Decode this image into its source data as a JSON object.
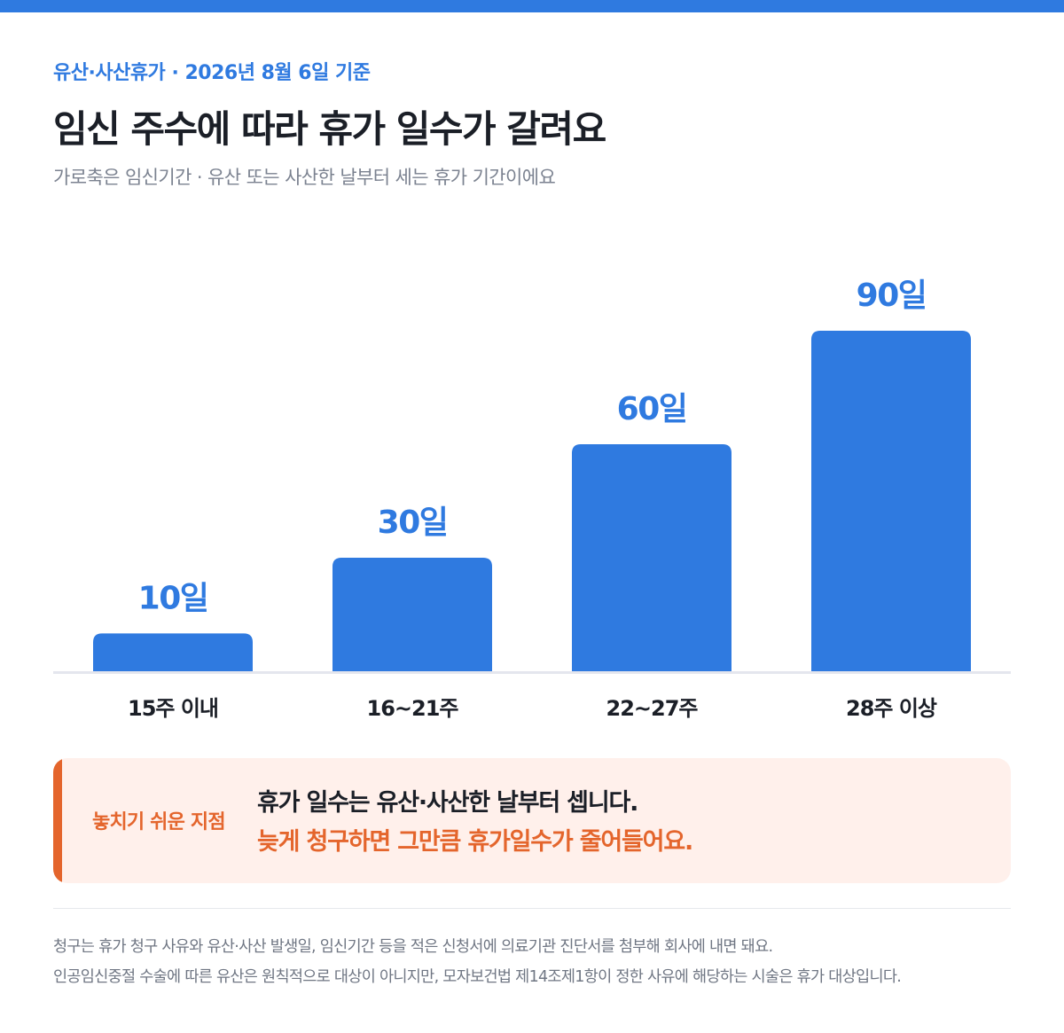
{
  "header": {
    "eyebrow": "유산·사산휴가 · 2026년 8월 6일 기준",
    "title": "임신 주수에 따라 휴가 일수가 갈려요",
    "subtitle": "가로축은 임신기간 · 유산 또는 사산한 날부터 세는 휴가 기간이에요"
  },
  "chart_data": {
    "type": "bar",
    "categories": [
      "15주 이내",
      "16~21주",
      "22~27주",
      "28주 이상"
    ],
    "values": [
      10,
      30,
      60,
      90
    ],
    "value_labels": [
      "10일",
      "30일",
      "60일",
      "90일"
    ],
    "unit": "일",
    "ylim": [
      0,
      90
    ],
    "grid": false,
    "legend": "none"
  },
  "callout": {
    "tag": "놓치기 쉬운 지점",
    "line1": "휴가 일수는 유산·사산한 날부터 셉니다.",
    "line2": "늦게 청구하면 그만큼 휴가일수가 줄어들어요."
  },
  "footnotes": [
    "청구는 휴가 청구 사유와 유산·사산 발생일, 임신기간 등을 적은 신청서에 의료기관 진단서를 첨부해 회사에 내면 돼요.",
    "인공임신중절 수술에 따른 유산은 원칙적으로 대상이 아니지만, 모자보건법 제14조제1항이 정한 사유에 해당하는 시술은 휴가 대상입니다."
  ],
  "colors": {
    "accent": "#2f7ae0",
    "warning": "#e4652c",
    "callout_bg": "#fff0eb",
    "text": "#1b1f27",
    "muted": "#7b8290"
  }
}
